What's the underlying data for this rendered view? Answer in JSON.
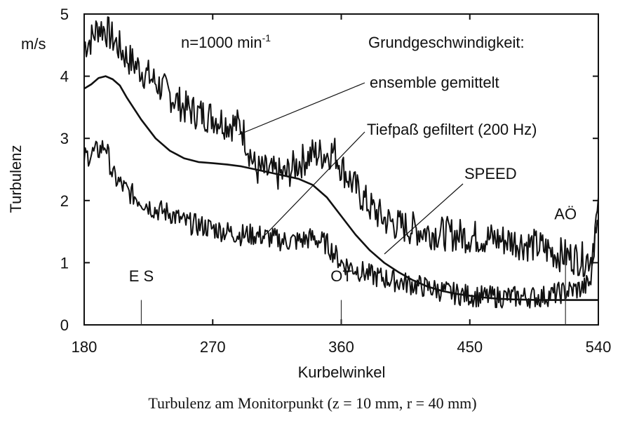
{
  "chart_data": {
    "type": "line",
    "xlabel": "Kurbelwinkel",
    "ylabel": "Turbulenz",
    "yunit": "m/s",
    "xlim": [
      180,
      540
    ],
    "ylim": [
      0,
      5
    ],
    "xticks": [
      180,
      270,
      360,
      450,
      540
    ],
    "yticks": [
      0,
      1,
      2,
      3,
      4,
      5
    ],
    "grid": false,
    "annotations": {
      "speed_note": "n=1000 min",
      "speed_note_exp": "-1",
      "heading": "Grundgeschwindigkeit:",
      "ensemble": "ensemble gemittelt",
      "lowpass": "Tiefpaß gefiltert (200 Hz)",
      "speed": "SPEED",
      "markers": [
        {
          "label": "E S",
          "x": 220
        },
        {
          "label": "OT",
          "x": 360
        },
        {
          "label": "AÖ",
          "x": 517
        }
      ]
    },
    "series": [
      {
        "key": "ensemble",
        "noise": 0.28,
        "x": [
          180,
          185,
          190,
          195,
          200,
          210,
          220,
          230,
          240,
          250,
          260,
          270,
          280,
          290,
          300,
          310,
          320,
          330,
          340,
          350,
          355,
          360,
          370,
          380,
          390,
          400,
          420,
          440,
          460,
          480,
          500,
          510,
          520,
          530,
          535,
          538,
          540
        ],
        "y": [
          4.5,
          4.6,
          4.8,
          4.75,
          4.6,
          4.3,
          4.1,
          3.9,
          3.7,
          3.5,
          3.4,
          3.35,
          3.25,
          3.2,
          2.5,
          2.45,
          2.4,
          2.6,
          2.75,
          2.75,
          2.8,
          2.55,
          2.2,
          1.9,
          1.7,
          1.6,
          1.5,
          1.45,
          1.4,
          1.35,
          1.25,
          1.15,
          1.1,
          1.05,
          1.1,
          1.6,
          1.8
        ]
      },
      {
        "key": "lowpass",
        "noise": 0.18,
        "x": [
          180,
          190,
          195,
          200,
          210,
          220,
          230,
          240,
          250,
          260,
          270,
          280,
          290,
          300,
          310,
          320,
          330,
          340,
          350,
          360,
          370,
          380,
          390,
          400,
          420,
          440,
          460,
          480,
          500,
          510,
          520,
          530,
          535,
          538,
          540
        ],
        "y": [
          2.7,
          2.8,
          2.9,
          2.4,
          2.15,
          2.0,
          1.85,
          1.8,
          1.65,
          1.6,
          1.55,
          1.5,
          1.45,
          1.45,
          1.4,
          1.35,
          1.35,
          1.4,
          1.3,
          1.0,
          0.9,
          0.8,
          0.75,
          0.7,
          0.6,
          0.5,
          0.45,
          0.45,
          0.45,
          0.5,
          0.55,
          0.6,
          0.7,
          1.5,
          1.8
        ]
      },
      {
        "key": "speed",
        "noise": 0,
        "x": [
          180,
          185,
          190,
          195,
          200,
          205,
          210,
          220,
          230,
          240,
          250,
          260,
          270,
          280,
          290,
          300,
          310,
          320,
          330,
          340,
          350,
          360,
          370,
          380,
          390,
          400,
          410,
          420,
          430,
          440,
          450,
          460,
          470,
          480,
          500,
          520,
          540
        ],
        "y": [
          3.8,
          3.87,
          3.97,
          4.0,
          3.95,
          3.85,
          3.65,
          3.3,
          3.0,
          2.8,
          2.68,
          2.62,
          2.6,
          2.58,
          2.55,
          2.5,
          2.45,
          2.4,
          2.35,
          2.25,
          2.05,
          1.75,
          1.45,
          1.2,
          1.0,
          0.85,
          0.72,
          0.62,
          0.55,
          0.5,
          0.47,
          0.44,
          0.42,
          0.41,
          0.4,
          0.4,
          0.4
        ]
      }
    ]
  },
  "caption": "Turbulenz am Monitorpunkt (z = 10 mm, r = 40 mm)"
}
